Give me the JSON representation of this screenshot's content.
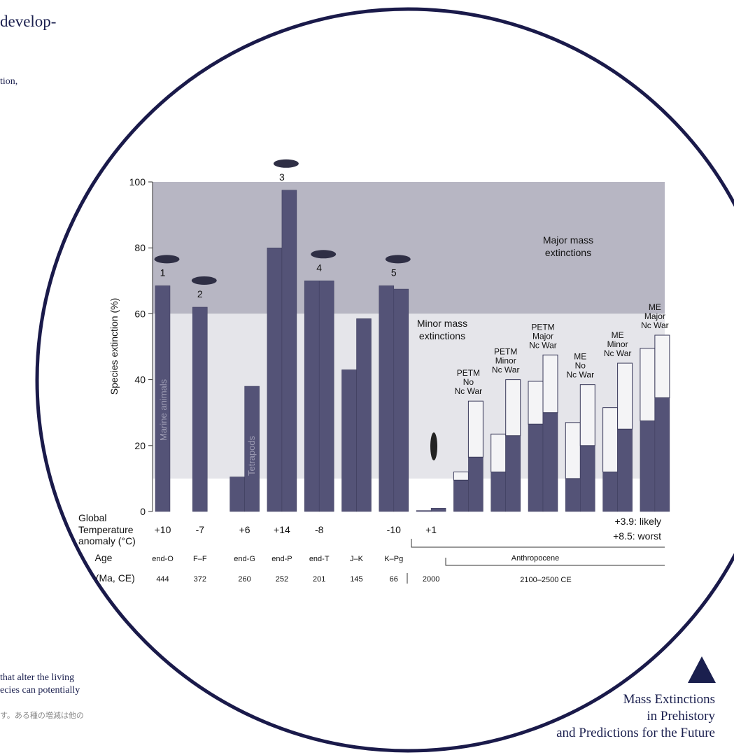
{
  "page": {
    "top_text": [
      "develop-",
      "tion,"
    ],
    "bottom_text": [
      "that alter the living",
      "ecies can potentially"
    ],
    "japanese_text": "す。ある種の増減は他の",
    "caption": [
      "Mass Extinctions",
      "in Prehistory",
      "and Predictions for the Future"
    ]
  },
  "chart_data": {
    "type": "bar",
    "ylabel": "Species extinction (%)",
    "ylim": [
      0,
      100
    ],
    "yticks": [
      0,
      20,
      40,
      60,
      80,
      100
    ],
    "dark_color": "#545377",
    "light_color": "#f4f4f6",
    "zones": [
      {
        "label": [
          "Major mass",
          "extinctions"
        ],
        "from": 60,
        "to": 100,
        "color": "#b7b6c3"
      },
      {
        "label": [
          "Minor mass",
          "extinctions"
        ],
        "from": 10,
        "to": 60,
        "color": "#e5e5ea"
      }
    ],
    "bar_annotations": [
      "Marine animals",
      "Tetrapods"
    ],
    "row_labels": [
      "Global",
      "Temperature",
      "anomaly (°C)",
      "Age",
      "Age (Ma, CE)"
    ],
    "future_temperature": [
      "+3.9: likely",
      "+8.5: worst"
    ],
    "future_age": "Anthropocene",
    "future_age_value": "2100–2500 CE",
    "groups": [
      {
        "marker": "1",
        "temperature": "+10",
        "age": "end-O",
        "age_value": 444,
        "values": [
          68.5
        ]
      },
      {
        "marker": "2",
        "temperature": "-7",
        "age": "F–F",
        "age_value": 372,
        "values": [
          62
        ]
      },
      {
        "temperature": "+6",
        "age": "end-G",
        "age_value": 260,
        "values": [
          10.5,
          38
        ]
      },
      {
        "marker": "3",
        "temperature": "+14",
        "age": "end-P",
        "age_value": 252,
        "values": [
          80,
          97.5
        ]
      },
      {
        "marker": "4",
        "temperature": "-8",
        "age": "end-T",
        "age_value": 201,
        "values": [
          70,
          70
        ]
      },
      {
        "age": "J–K",
        "age_value": 145,
        "values": [
          43,
          58.5
        ]
      },
      {
        "marker": "5",
        "temperature": "-10",
        "age": "K–Pg",
        "age_value": 66,
        "values": [
          68.5,
          67.5
        ]
      },
      {
        "temperature": "+1",
        "age_value": 2000,
        "values": [
          0.3,
          1
        ]
      },
      {
        "label": [
          "PETM",
          "No",
          "Nc War"
        ],
        "values": [
          9.5,
          16.5
        ],
        "light": [
          2.5,
          17
        ]
      },
      {
        "label": [
          "PETM",
          "Minor",
          "Nc War"
        ],
        "values": [
          12,
          23
        ],
        "light": [
          11.5,
          17
        ]
      },
      {
        "label": [
          "PETM",
          "Major",
          "Nc War"
        ],
        "values": [
          26.5,
          30
        ],
        "light": [
          13,
          17.5
        ]
      },
      {
        "label": [
          "ME",
          "No",
          "Nc War"
        ],
        "values": [
          10,
          20
        ],
        "light": [
          17,
          18.5
        ]
      },
      {
        "label": [
          "ME",
          "Minor",
          "Nc War"
        ],
        "values": [
          12,
          25
        ],
        "light": [
          19.5,
          20
        ]
      },
      {
        "label": [
          "ME",
          "Major",
          "Nc War"
        ],
        "values": [
          27.5,
          34.5
        ],
        "light": [
          22,
          19
        ]
      }
    ]
  }
}
